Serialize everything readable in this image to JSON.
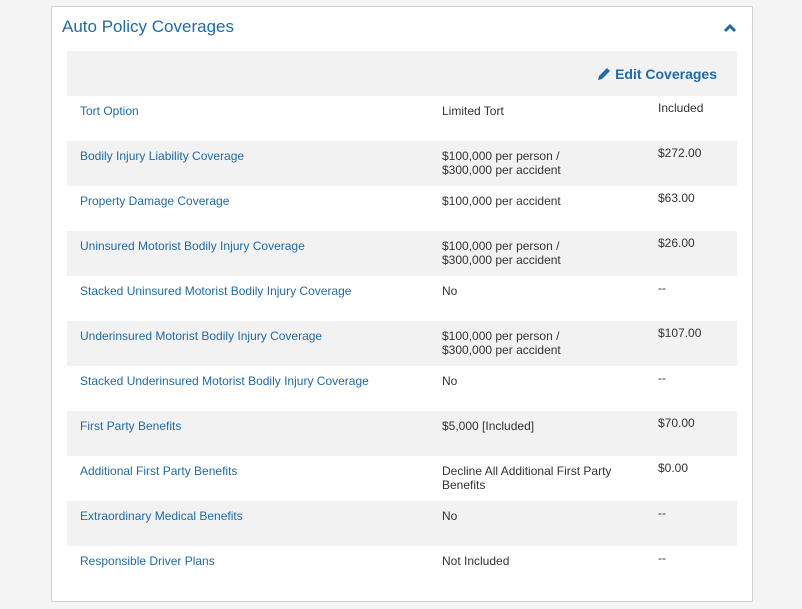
{
  "panel": {
    "title": "Auto Policy Coverages",
    "edit_label": "Edit Coverages",
    "rows": [
      {
        "name": "Tort Option",
        "description": [
          "Limited Tort"
        ],
        "price": "Included"
      },
      {
        "name": "Bodily Injury Liability Coverage",
        "description": [
          "$100,000 per person /",
          "$300,000 per accident"
        ],
        "price": "$272.00"
      },
      {
        "name": "Property Damage Coverage",
        "description": [
          "$100,000 per accident"
        ],
        "price": "$63.00"
      },
      {
        "name": "Uninsured Motorist Bodily Injury Coverage",
        "description": [
          "$100,000 per person /",
          "$300,000 per accident"
        ],
        "price": "$26.00"
      },
      {
        "name": "Stacked Uninsured Motorist Bodily Injury Coverage",
        "description": [
          "No"
        ],
        "price": "--"
      },
      {
        "name": "Underinsured Motorist Bodily Injury Coverage",
        "description": [
          "$100,000 per person /",
          "$300,000 per accident"
        ],
        "price": "$107.00"
      },
      {
        "name": "Stacked Underinsured Motorist Bodily Injury Coverage",
        "description": [
          "No"
        ],
        "price": "--"
      },
      {
        "name": "First Party Benefits",
        "description": [
          "$5,000 [Included]"
        ],
        "price": "$70.00"
      },
      {
        "name": "Additional First Party Benefits",
        "description": [
          "Decline All Additional First Party",
          "Benefits"
        ],
        "price": "$0.00"
      },
      {
        "name": "Extraordinary Medical Benefits",
        "description": [
          "No"
        ],
        "price": "--"
      },
      {
        "name": "Responsible Driver Plans",
        "description": [
          "Not Included"
        ],
        "price": "--"
      }
    ]
  }
}
